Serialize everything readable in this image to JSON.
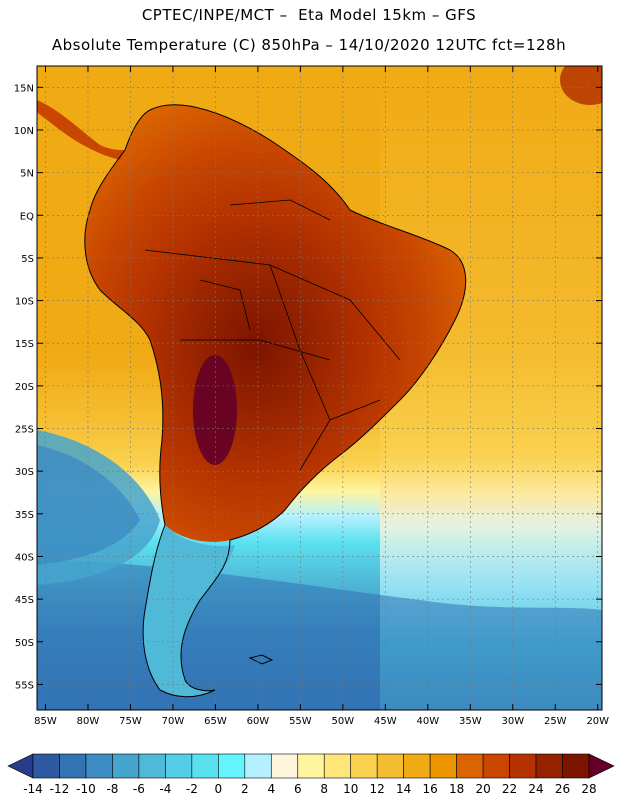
{
  "header": {
    "line1": "CPTEC/INPE/MCT –  Eta Model 15km – GFS",
    "line2": "Absolute Temperature (C) 850hPa – 14/10/2020 12UTC fct=128h"
  },
  "map": {
    "lon_labels": [
      "85W",
      "80W",
      "75W",
      "70W",
      "65W",
      "60W",
      "55W",
      "50W",
      "45W",
      "40W",
      "35W",
      "30W",
      "25W",
      "20W"
    ],
    "lat_labels": [
      "15N",
      "10N",
      "5N",
      "EQ",
      "5S",
      "10S",
      "15S",
      "20S",
      "25S",
      "30S",
      "35S",
      "40S",
      "45S",
      "50S",
      "55S"
    ],
    "lon_values": [
      -85,
      -80,
      -75,
      -70,
      -65,
      -60,
      -55,
      -50,
      -45,
      -40,
      -35,
      -30,
      -25,
      -20
    ],
    "lat_values": [
      15,
      10,
      5,
      0,
      -5,
      -10,
      -15,
      -20,
      -25,
      -30,
      -35,
      -40,
      -45,
      -50,
      -55
    ],
    "extent": {
      "lon_min": -86,
      "lon_max": -19.5,
      "lat_min": -58,
      "lat_max": 17.5
    }
  },
  "colorbar": {
    "labels": [
      "-14",
      "-12",
      "-10",
      "-8",
      "-6",
      "-4",
      "-2",
      "0",
      "2",
      "4",
      "6",
      "8",
      "10",
      "12",
      "14",
      "16",
      "18",
      "20",
      "22",
      "24",
      "26",
      "28"
    ],
    "colors": [
      "#283c8c",
      "#2d5aa0",
      "#3273b4",
      "#3c8cc3",
      "#46a5cd",
      "#50b9d7",
      "#55cde6",
      "#5ae1f0",
      "#64f5ff",
      "#b4f0ff",
      "#fff5dc",
      "#fff5a0",
      "#ffe678",
      "#fad250",
      "#f5be32",
      "#f0aa14",
      "#eb9600",
      "#dc6400",
      "#c84600",
      "#b43200",
      "#962300",
      "#7d1400",
      "#640028"
    ]
  }
}
